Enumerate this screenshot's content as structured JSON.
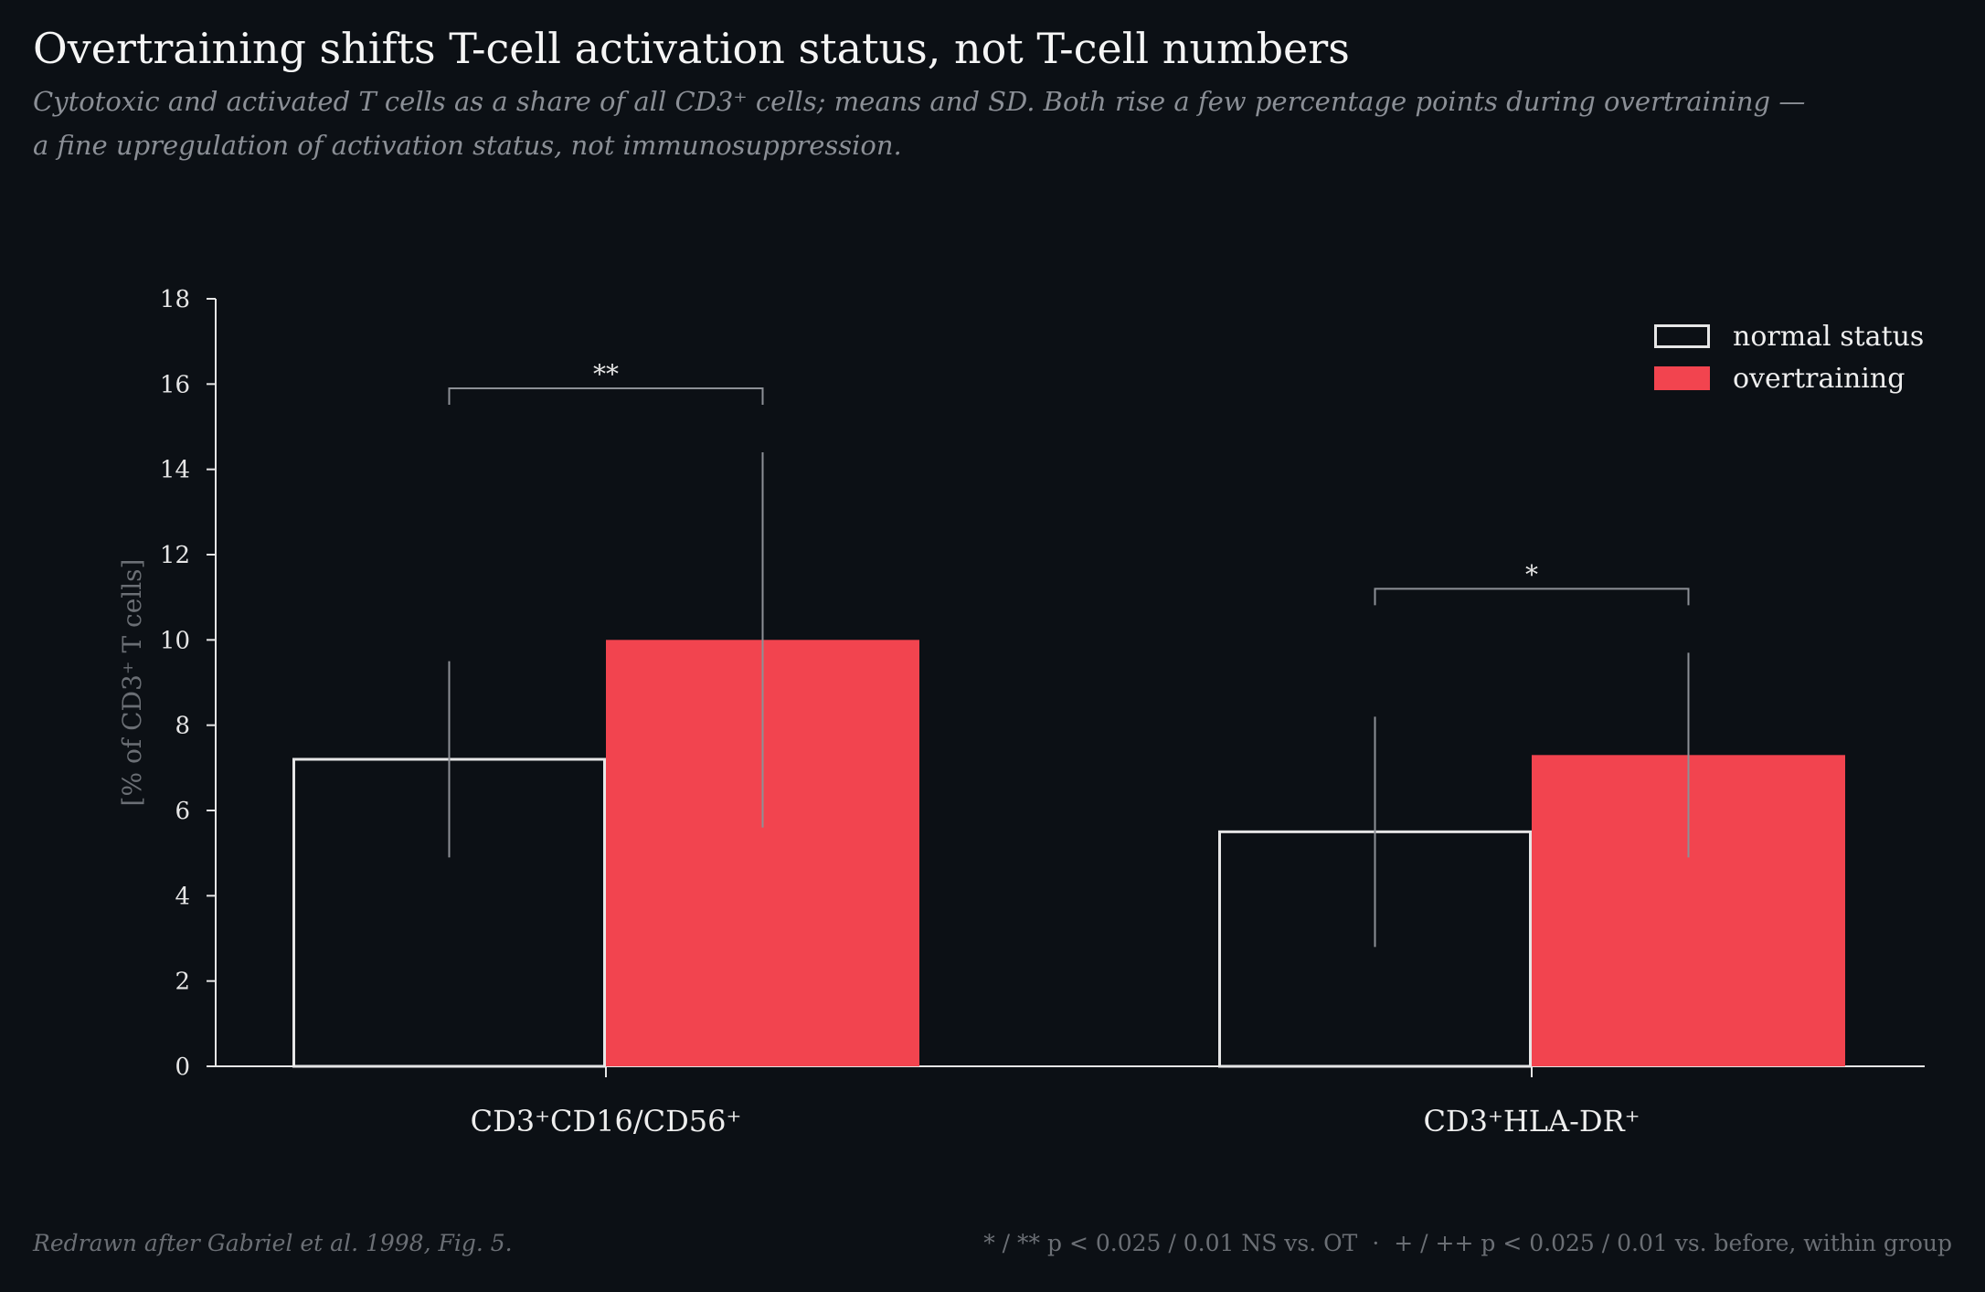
{
  "header": {
    "title": "Overtraining shifts T-cell activation status, not T-cell numbers",
    "subtitle_line1": "Cytotoxic and activated T cells as a share of all CD3⁺ cells; means and SD. Both rise a few percentage points during overtraining —",
    "subtitle_line2": "a fine upregulation of activation status, not immunosuppression."
  },
  "footer": {
    "source": "Redrawn after Gabriel et al. 1998, Fig. 5.",
    "footnote_a": "* / ** p < 0.025 / 0.01 NS vs. OT",
    "separator": "·",
    "footnote_b": "+ / ++ p < 0.025 / 0.01 vs. before, within group"
  },
  "colors": {
    "background": "#0c1015",
    "normal_outline": "#e6e6e6",
    "overtraining_fill": "#f2444f",
    "error_bar": "#8d9096",
    "axis": "#e6e6e6",
    "muted_text": "#6b6f75"
  },
  "chart_data": {
    "type": "bar",
    "title": "Overtraining shifts T-cell activation status, not T-cell numbers",
    "ylabel": "[% of CD3⁺ T cells]",
    "xlabel": "",
    "ylim": [
      0,
      18
    ],
    "yticks": [
      0,
      2,
      4,
      6,
      8,
      10,
      12,
      14,
      16,
      18
    ],
    "categories": [
      "CD3⁺CD16/CD56⁺",
      "CD3⁺HLA-DR⁺"
    ],
    "series": [
      {
        "name": "normal status",
        "style": "outline",
        "values": [
          7.2,
          5.5
        ],
        "sd": [
          2.3,
          2.7
        ]
      },
      {
        "name": "overtraining",
        "style": "filled",
        "values": [
          10.0,
          7.3
        ],
        "sd": [
          4.4,
          2.4
        ]
      }
    ],
    "significance": [
      {
        "category": 0,
        "label": "**",
        "y": 15.9
      },
      {
        "category": 1,
        "label": "*",
        "y": 11.2
      }
    ],
    "legend_position": "top-right",
    "grid": false
  }
}
